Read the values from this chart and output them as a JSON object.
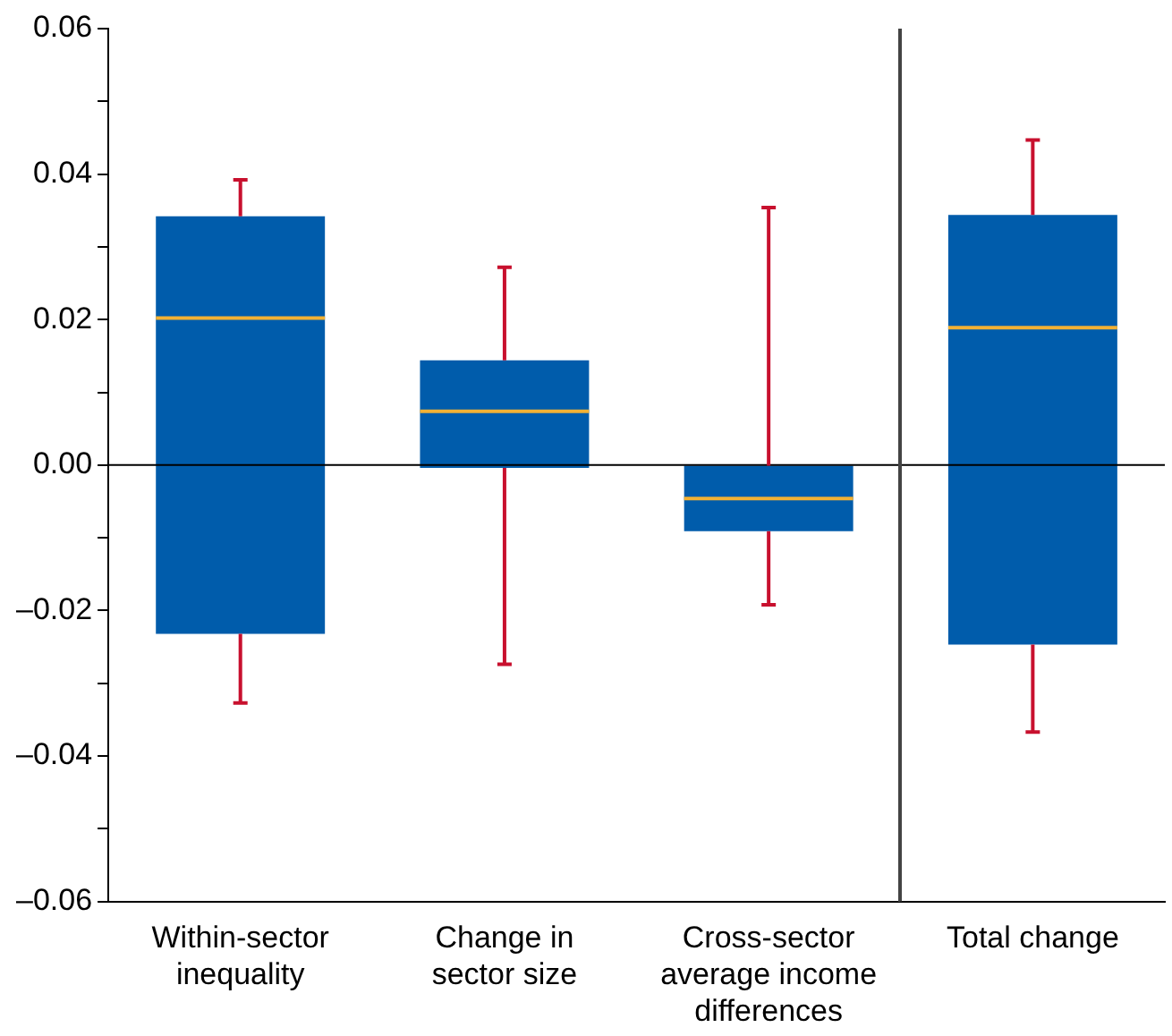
{
  "chart_data": {
    "type": "box",
    "categories": [
      "Within-sector inequality",
      "Change in sector size",
      "Cross-sector average income differences",
      "Total change"
    ],
    "boxes": [
      {
        "low": -0.0327,
        "q1": -0.0232,
        "median": 0.0202,
        "q3": 0.0342,
        "high": 0.0392
      },
      {
        "low": -0.0274,
        "q1": -0.0004,
        "median": 0.0074,
        "q3": 0.0144,
        "high": 0.0272
      },
      {
        "low": -0.0192,
        "q1": -0.0091,
        "median": -0.0046,
        "q3": -0.0001,
        "high": 0.0354
      },
      {
        "low": -0.0367,
        "q1": -0.0247,
        "median": 0.0189,
        "q3": 0.0344,
        "high": 0.0447
      }
    ],
    "color": "#005cab",
    "ylim": [
      -0.06,
      0.06
    ],
    "yticks": [
      {
        "value": -0.06,
        "label": "–0.06"
      },
      {
        "value": -0.05,
        "label": null
      },
      {
        "value": -0.04,
        "label": "–0.04"
      },
      {
        "value": -0.03,
        "label": null
      },
      {
        "value": -0.02,
        "label": "–0.02"
      },
      {
        "value": -0.01,
        "label": null
      },
      {
        "value": 0,
        "label": "0.00"
      },
      {
        "value": 0.01,
        "label": null
      },
      {
        "value": 0.02,
        "label": "0.02"
      },
      {
        "value": 0.03,
        "label": null
      },
      {
        "value": 0.04,
        "label": "0.04"
      },
      {
        "value": 0.05,
        "label": null
      },
      {
        "value": 0.06,
        "label": "0.06"
      }
    ],
    "ref_lines": [
      {
        "axis": "y",
        "value": 0,
        "color": "#000000"
      }
    ],
    "grid": false,
    "legend": false
  }
}
